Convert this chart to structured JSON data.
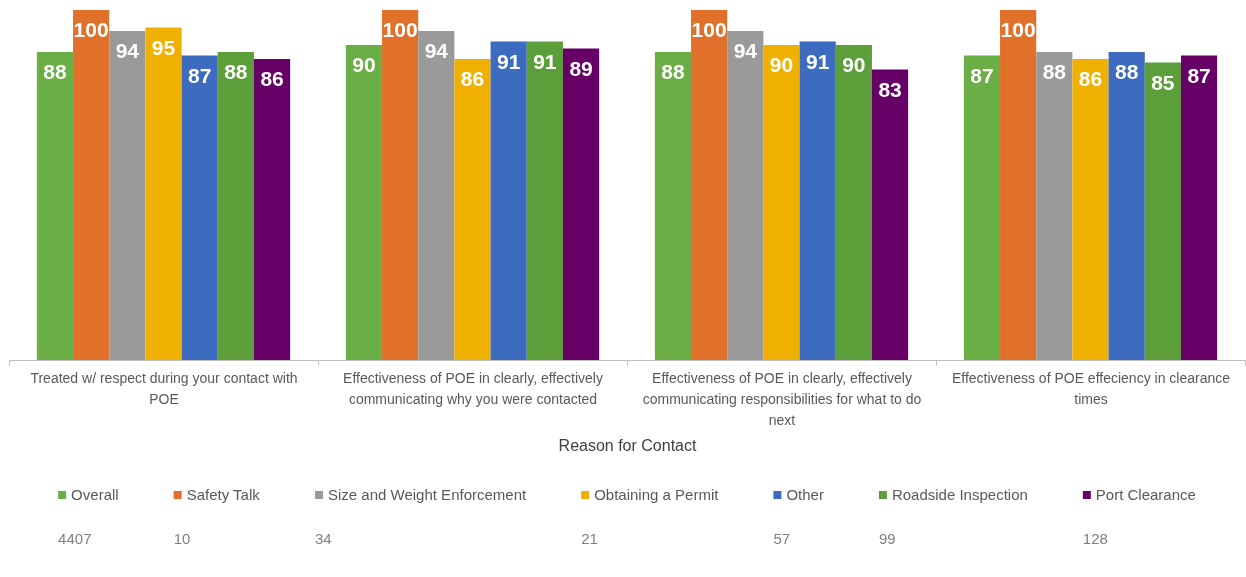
{
  "chart_data": {
    "type": "bar",
    "xlabel": "Reason for Contact",
    "categories": [
      "Treated w/ respect during your contact with POE",
      "Effectiveness of POE in clearly, effectively communicating why you were contacted",
      "Effectiveness of POE in clearly, effectively communicating responsibilities for what to do next",
      "Effectiveness of POE effeciency in clearance times"
    ],
    "series": [
      {
        "name": "Overall",
        "color": "#6aae45",
        "values": [
          88,
          90,
          88,
          87
        ]
      },
      {
        "name": "Safety Talk",
        "color": "#e0702a",
        "values": [
          100,
          100,
          100,
          100
        ]
      },
      {
        "name": "Size and Weight Enforcement",
        "color": "#9a9a9a",
        "values": [
          94,
          94,
          94,
          88
        ]
      },
      {
        "name": "Obtaining a Permit",
        "color": "#f0b000",
        "values": [
          95,
          86,
          90,
          86
        ]
      },
      {
        "name": "Other",
        "color": "#3d6bbf",
        "values": [
          87,
          91,
          91,
          88
        ]
      },
      {
        "name": "Roadside Inspection",
        "color": "#5c9e3a",
        "values": [
          88,
          91,
          90,
          85
        ]
      },
      {
        "name": "Port Clearance",
        "color": "#660066",
        "values": [
          86,
          89,
          83,
          87
        ]
      }
    ],
    "ylim": [
      0,
      100
    ],
    "tick_labels": "x",
    "data_labels": true,
    "legend": "bottom",
    "annotations": [
      "4407",
      "10",
      "34",
      "21",
      "57",
      "99",
      "128"
    ]
  }
}
